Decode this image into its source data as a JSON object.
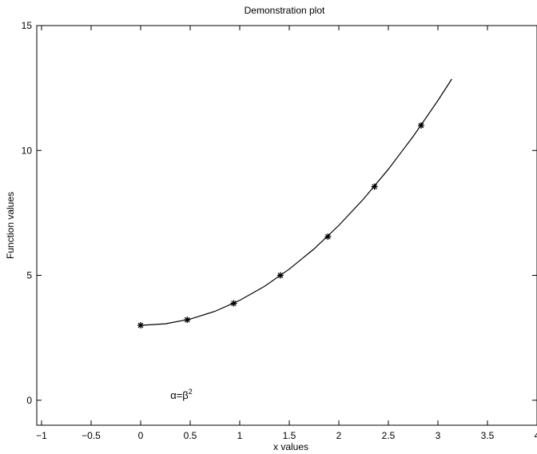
{
  "chart_data": {
    "type": "line",
    "title": "Demonstration plot",
    "xlabel": "x values",
    "ylabel": "Function values",
    "xlim": [
      -1,
      4
    ],
    "ylim": [
      -1,
      15
    ],
    "grid": false,
    "xticks": [
      "−1",
      "−0.5",
      "0",
      "0.5",
      "1",
      "1.5",
      "2",
      "2.5",
      "3",
      "3.5",
      "4"
    ],
    "xtick_values": [
      -1,
      -0.5,
      0,
      0.5,
      1,
      1.5,
      2,
      2.5,
      3,
      3.5,
      4
    ],
    "yticks": [
      "0",
      "5",
      "10",
      "15"
    ],
    "ytick_values": [
      0,
      5,
      10,
      15
    ],
    "series": [
      {
        "style": "solid-line",
        "color": "#000000",
        "x": [
          0,
          0.25,
          0.5,
          0.75,
          1.0,
          1.25,
          1.5,
          1.75,
          2.0,
          2.25,
          2.5,
          2.75,
          3.0,
          3.14
        ],
        "y": [
          3.0,
          3.06,
          3.25,
          3.56,
          4.0,
          4.56,
          5.25,
          6.06,
          7.0,
          8.06,
          9.25,
          10.56,
          12.0,
          12.86
        ]
      },
      {
        "style": "asterisk-markers",
        "color": "#000000",
        "x": [
          0,
          0.47,
          0.94,
          1.41,
          1.89,
          2.36,
          2.83
        ],
        "y": [
          3.0,
          3.22,
          3.88,
          5.0,
          6.55,
          8.55,
          11.0
        ]
      }
    ],
    "annotations": [
      {
        "base": "α=β",
        "superscript": "2",
        "x": 0.3,
        "y": 0.0
      }
    ]
  }
}
